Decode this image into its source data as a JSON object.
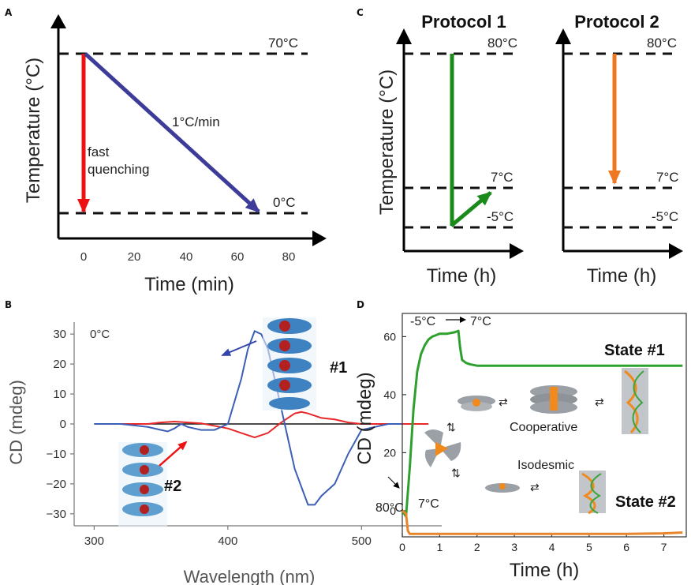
{
  "panel_labels": {
    "a": "A",
    "b": "B",
    "c": "C",
    "d": "D"
  },
  "chart_data": [
    {
      "type": "line",
      "panel": "A",
      "xlabel": "Time (min)",
      "ylabel": "Temperature (°C)",
      "xticks": [
        "0",
        "20",
        "40",
        "60",
        "80"
      ],
      "xlim": [
        -10,
        90
      ],
      "ylim": [
        -7,
        84
      ],
      "reference_lines": [
        {
          "y": 70,
          "label": "70°C"
        },
        {
          "y": 0,
          "label": "0°C"
        }
      ],
      "series": [
        {
          "name": "fast quenching",
          "color": "#ee1111",
          "x": [
            0,
            0
          ],
          "y": [
            70,
            0
          ]
        },
        {
          "name": "1°C/min",
          "color": "#3d3d99",
          "x": [
            0,
            70
          ],
          "y": [
            70,
            0
          ]
        }
      ],
      "annotations": {
        "ramp": "1°C/min",
        "quench_line1": "fast",
        "quench_line2": "quenching"
      }
    },
    {
      "type": "line",
      "panel": "B",
      "xlabel": "Wavelength (nm)",
      "ylabel": "CD (mdeg)",
      "xticks": [
        "300",
        "400",
        "500"
      ],
      "yticks": [
        "30",
        "20",
        "10",
        "0",
        "−10",
        "−20",
        "−30"
      ],
      "xlim": [
        285,
        560
      ],
      "ylim": [
        -34,
        34
      ],
      "annotations": {
        "temp": "0°C",
        "state1": "#1",
        "state2": "#2"
      },
      "series": [
        {
          "name": "#1",
          "color": "#3b5fb5",
          "x": [
            300,
            310,
            320,
            330,
            340,
            350,
            355,
            360,
            365,
            370,
            380,
            390,
            400,
            410,
            415,
            420,
            425,
            430,
            440,
            450,
            460,
            465,
            470,
            480,
            490,
            500,
            510,
            520,
            530
          ],
          "y": [
            0,
            0,
            0,
            -0.5,
            -1,
            -2,
            -2.5,
            -1.5,
            0,
            -1,
            -2,
            -2,
            0,
            15,
            25,
            31,
            30,
            25,
            5,
            -15,
            -27,
            -27,
            -24,
            -20,
            -10,
            -2,
            -1,
            0,
            0
          ]
        },
        {
          "name": "#2",
          "color": "#e82828",
          "x": [
            300,
            320,
            340,
            350,
            360,
            380,
            400,
            410,
            420,
            430,
            440,
            450,
            455,
            460,
            470,
            480,
            490,
            500,
            520,
            550
          ],
          "y": [
            0,
            0,
            0,
            0.5,
            0.8,
            0.2,
            -1.5,
            -3,
            -4.5,
            -3,
            0.5,
            3.5,
            4,
            3.5,
            2,
            1.5,
            0.5,
            0,
            0,
            0
          ]
        },
        {
          "name": "baseline",
          "color": "#111111",
          "x": [
            300,
            350,
            400,
            450,
            500,
            550
          ],
          "y": [
            0,
            0,
            0,
            0,
            0,
            0
          ]
        }
      ]
    },
    {
      "type": "line",
      "panel": "C",
      "subplots": [
        {
          "title": "Protocol 1",
          "xlabel": "Time (h)",
          "ylabel": "Temperature (°C)",
          "reference_lines": [
            {
              "y": 80,
              "label": "80°C"
            },
            {
              "y": 7,
              "label": "7°C"
            },
            {
              "y": -5,
              "label": "-5°C"
            }
          ],
          "series": [
            {
              "color": "#1a8a1a",
              "x": [
                0,
                0,
                1
              ],
              "y": [
                80,
                -5,
                7
              ]
            }
          ]
        },
        {
          "title": "Protocol 2",
          "xlabel": "Time (h)",
          "reference_lines": [
            {
              "y": 80,
              "label": "80°C"
            },
            {
              "y": 7,
              "label": "7°C"
            },
            {
              "y": -5,
              "label": "-5°C"
            }
          ],
          "series": [
            {
              "color": "#ee7722",
              "x": [
                0,
                0
              ],
              "y": [
                80,
                7
              ]
            }
          ]
        }
      ]
    },
    {
      "type": "line",
      "panel": "D",
      "xlabel": "Time (h)",
      "ylabel": "CD (mdeg)",
      "xticks": [
        "0",
        "1",
        "2",
        "3",
        "4",
        "5",
        "6",
        "7"
      ],
      "yticks": [
        "60",
        "40",
        "20",
        "0"
      ],
      "xlim": [
        0,
        7.6
      ],
      "ylim": [
        -9,
        68
      ],
      "annotations": {
        "step": "-5°C",
        "step_to": "7°C",
        "state1": "State #1",
        "state2": "State #2",
        "start": "80°C",
        "low": "7°C",
        "coop": "Cooperative",
        "iso": "Isodesmic"
      },
      "series": [
        {
          "name": "State #1",
          "color": "#2ea02e",
          "x": [
            0,
            0.1,
            0.2,
            0.3,
            0.4,
            0.5,
            0.6,
            0.7,
            0.8,
            0.9,
            1.0,
            1.2,
            1.4,
            1.5,
            1.55,
            1.6,
            1.7,
            1.8,
            2.0,
            3,
            4,
            5,
            6,
            7,
            7.5
          ],
          "y": [
            0,
            -2,
            15,
            35,
            48,
            54,
            57,
            59,
            60,
            60.5,
            61,
            61,
            61.5,
            62,
            56,
            52,
            51,
            50.5,
            50,
            50,
            50,
            50,
            50,
            50,
            50
          ]
        },
        {
          "name": "State #2",
          "color": "#e8852a",
          "x": [
            0,
            0.1,
            0.15,
            0.2,
            0.5,
            1,
            2,
            3,
            4,
            5,
            6,
            7,
            7.5
          ],
          "y": [
            0,
            -1,
            -7,
            -8,
            -8,
            -8,
            -8,
            -8,
            -8,
            -8,
            -8,
            -7.8,
            -7.5
          ]
        }
      ]
    }
  ]
}
